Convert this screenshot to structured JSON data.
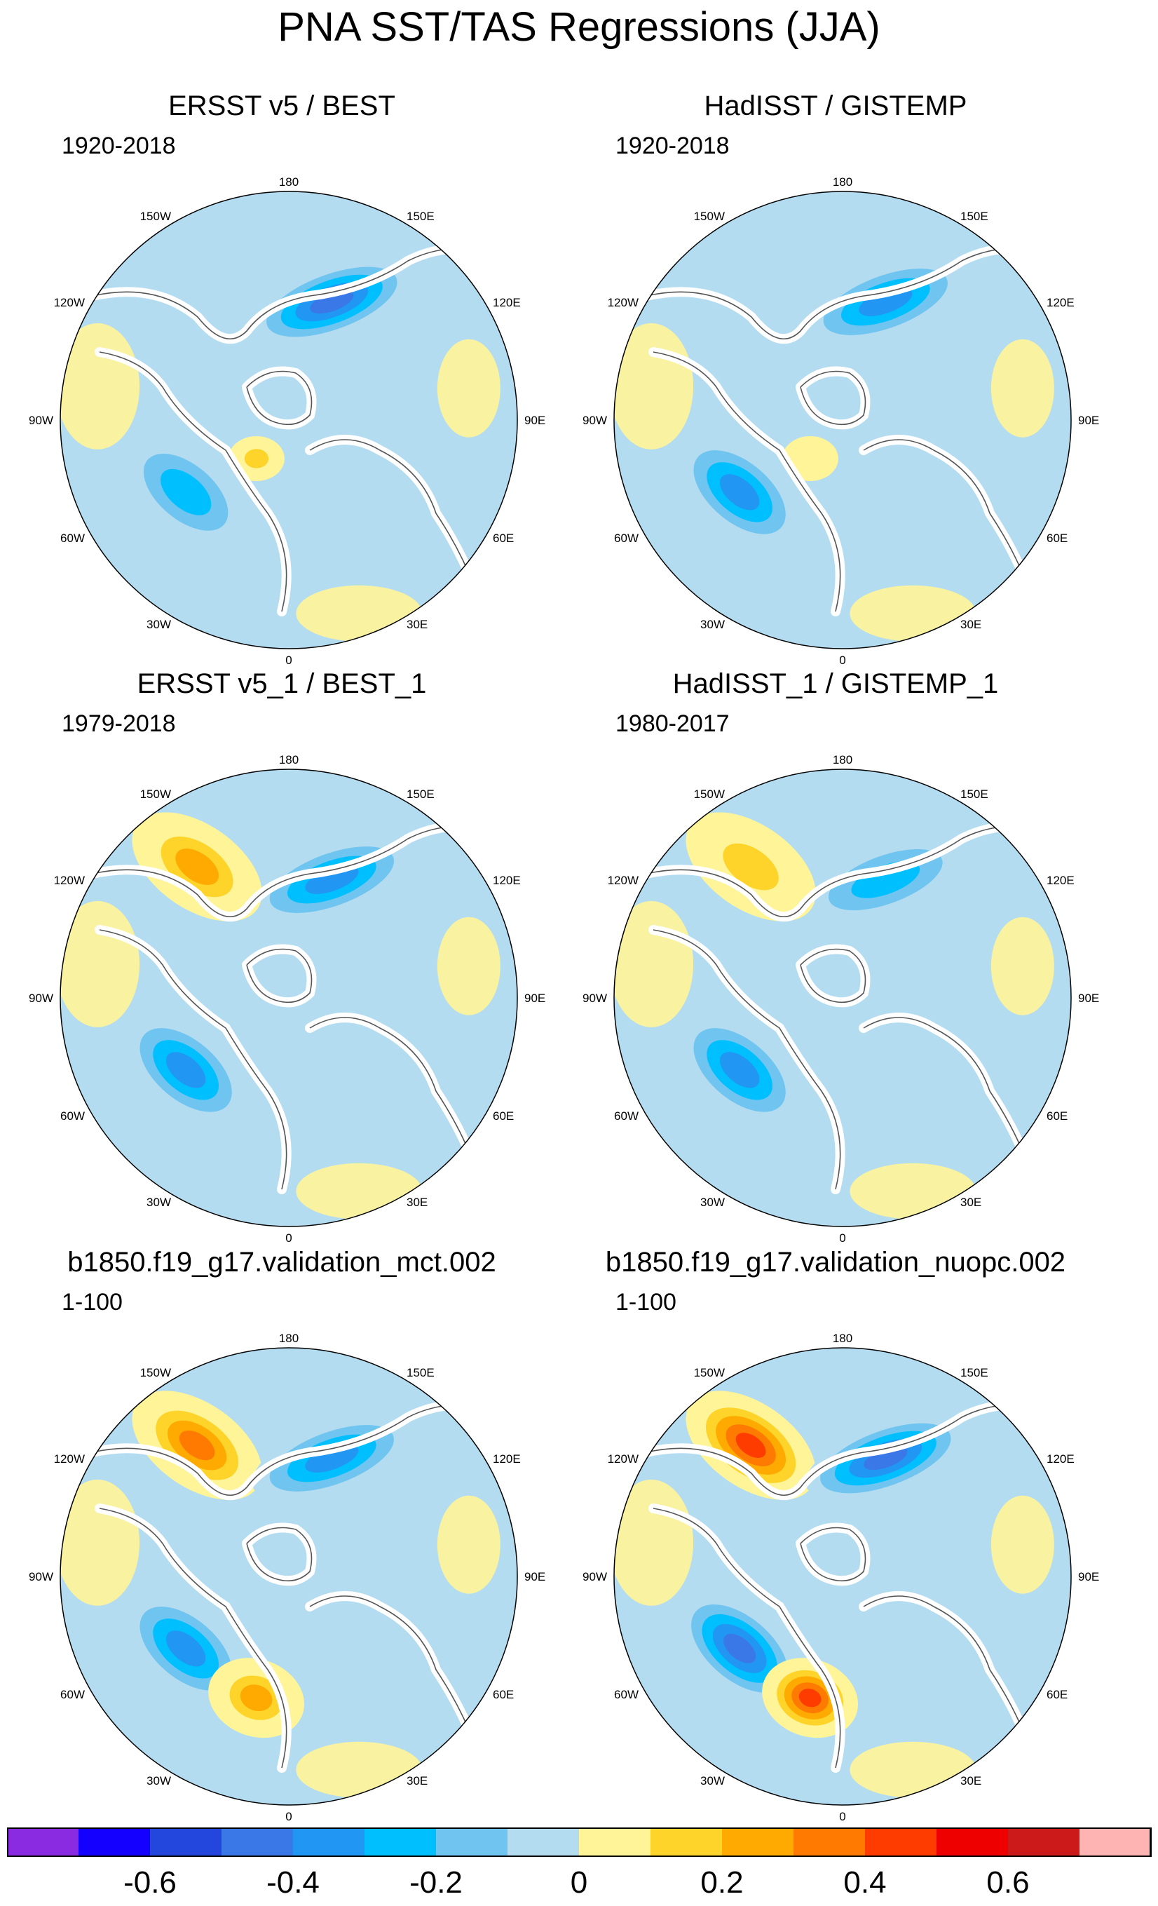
{
  "title": "PNA SST/TAS Regressions (JJA)",
  "longitude_labels": [
    "180",
    "150E",
    "120E",
    "90E",
    "60E",
    "30E",
    "0",
    "30W",
    "60W",
    "90W",
    "120W",
    "150W"
  ],
  "panels": [
    {
      "title": "ERSST v5 / BEST",
      "period": "1920-2018",
      "features": [
        {
          "name": "north-pacific-negative-center",
          "kind": "negative",
          "level": -0.4
        },
        {
          "name": "north-atlantic-negative-center",
          "kind": "negative",
          "level": -0.2
        },
        {
          "name": "arctic-positive-patch",
          "kind": "positive",
          "level": 0.2
        }
      ]
    },
    {
      "title": "HadISST / GISTEMP",
      "period": "1920-2018",
      "features": [
        {
          "name": "north-pacific-negative-center",
          "kind": "negative",
          "level": -0.3
        },
        {
          "name": "north-atlantic-negative-center",
          "kind": "negative",
          "level": -0.3
        },
        {
          "name": "arctic-positive-patch",
          "kind": "positive",
          "level": 0.1
        }
      ]
    },
    {
      "title": "ERSST v5_1 / BEST_1",
      "period": "1979-2018",
      "features": [
        {
          "name": "north-pacific-negative-center",
          "kind": "negative",
          "level": -0.3
        },
        {
          "name": "north-pacific-positive-center",
          "kind": "positive",
          "level": 0.3
        },
        {
          "name": "north-atlantic-negative-center",
          "kind": "negative",
          "level": -0.3
        }
      ]
    },
    {
      "title": "HadISST_1 / GISTEMP_1",
      "period": "1980-2017",
      "features": [
        {
          "name": "north-pacific-negative-center",
          "kind": "negative",
          "level": -0.2
        },
        {
          "name": "north-pacific-positive-center",
          "kind": "positive",
          "level": 0.2
        },
        {
          "name": "north-atlantic-negative-center",
          "kind": "negative",
          "level": -0.3
        }
      ]
    },
    {
      "title": "b1850.f19_g17.validation_mct.002",
      "period": "1-100",
      "features": [
        {
          "name": "north-pacific-positive-center",
          "kind": "positive",
          "level": 0.4
        },
        {
          "name": "north-pacific-negative-center",
          "kind": "negative",
          "level": -0.3
        },
        {
          "name": "north-atlantic-negative-center",
          "kind": "negative",
          "level": -0.3
        },
        {
          "name": "north-atlantic-positive-center",
          "kind": "positive",
          "level": 0.3
        }
      ]
    },
    {
      "title": "b1850.f19_g17.validation_nuopc.002",
      "period": "1-100",
      "features": [
        {
          "name": "north-pacific-positive-center",
          "kind": "positive",
          "level": 0.5
        },
        {
          "name": "north-pacific-negative-center",
          "kind": "negative",
          "level": -0.4
        },
        {
          "name": "north-atlantic-negative-center",
          "kind": "negative",
          "level": -0.4
        },
        {
          "name": "north-atlantic-positive-center",
          "kind": "positive",
          "level": 0.5
        }
      ]
    }
  ],
  "colorbar": {
    "colors": [
      "#8a2be2",
      "#1400ff",
      "#2347dc",
      "#3a78e8",
      "#2196f3",
      "#00bfff",
      "#70c4f0",
      "#b4dcf0",
      "#fff498",
      "#ffd42a",
      "#ffaa00",
      "#ff7a00",
      "#ff3c00",
      "#ee0000",
      "#cc1a1a",
      "#ffb4b4"
    ],
    "tick_labels": [
      "-0.6",
      "-0.4",
      "-0.2",
      "0",
      "0.2",
      "0.4",
      "0.6"
    ],
    "tick_boundaries": [
      2,
      4,
      6,
      8,
      10,
      12,
      14
    ]
  }
}
